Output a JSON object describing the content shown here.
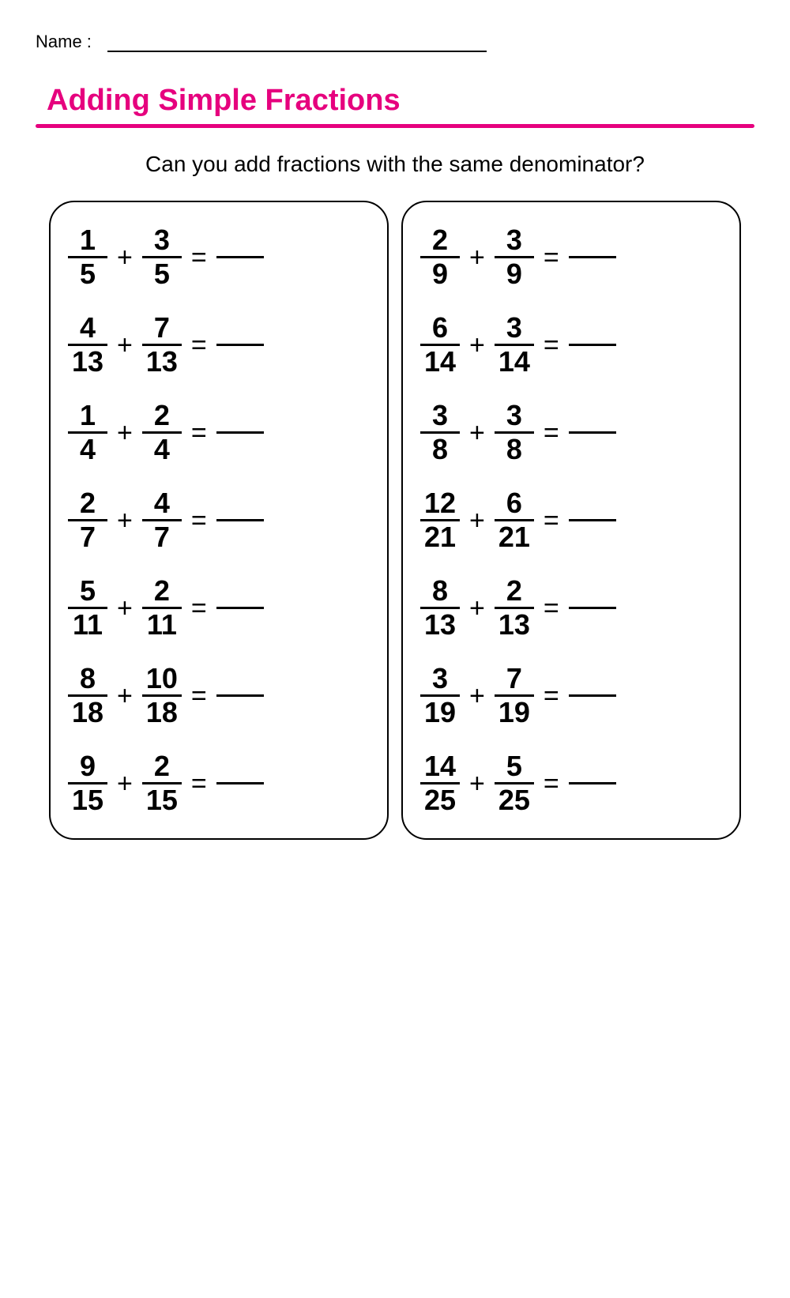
{
  "header": {
    "name_label": "Name :",
    "title": "Adding Simple Fractions",
    "title_color": "#e6007e",
    "rule_color": "#e6007e",
    "subtitle": "Can you add fractions with the same denominator?"
  },
  "symbols": {
    "plus": "+",
    "equals": "="
  },
  "layout": {
    "columns": 2,
    "panel_border_color": "#000000",
    "panel_radius": 32
  },
  "left_problems": [
    {
      "a_num": "1",
      "a_den": "5",
      "b_num": "3",
      "b_den": "5"
    },
    {
      "a_num": "4",
      "a_den": "13",
      "b_num": "7",
      "b_den": "13"
    },
    {
      "a_num": "1",
      "a_den": "4",
      "b_num": "2",
      "b_den": "4"
    },
    {
      "a_num": "2",
      "a_den": "7",
      "b_num": "4",
      "b_den": "7"
    },
    {
      "a_num": "5",
      "a_den": "11",
      "b_num": "2",
      "b_den": "11"
    },
    {
      "a_num": "8",
      "a_den": "18",
      "b_num": "10",
      "b_den": "18"
    },
    {
      "a_num": "9",
      "a_den": "15",
      "b_num": "2",
      "b_den": "15"
    }
  ],
  "right_problems": [
    {
      "a_num": "2",
      "a_den": "9",
      "b_num": "3",
      "b_den": "9"
    },
    {
      "a_num": "6",
      "a_den": "14",
      "b_num": "3",
      "b_den": "14"
    },
    {
      "a_num": "3",
      "a_den": "8",
      "b_num": "3",
      "b_den": "8"
    },
    {
      "a_num": "12",
      "a_den": "21",
      "b_num": "6",
      "b_den": "21"
    },
    {
      "a_num": "8",
      "a_den": "13",
      "b_num": "2",
      "b_den": "13"
    },
    {
      "a_num": "3",
      "a_den": "19",
      "b_num": "7",
      "b_den": "19"
    },
    {
      "a_num": "14",
      "a_den": "25",
      "b_num": "5",
      "b_den": "25"
    }
  ]
}
